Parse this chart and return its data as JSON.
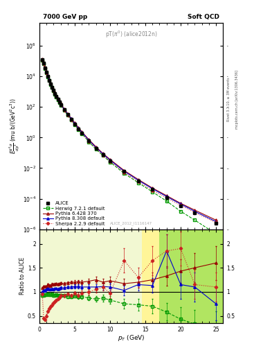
{
  "title_left": "7000 GeV pp",
  "title_right": "Soft QCD",
  "plot_label": "pT(π⁰) (alice2012n)",
  "watermark": "ALICE_2012_I1116147",
  "right_label1": "Rivet 3.1.10, ≥ 3M events",
  "right_label2": "mcplots.cern.ch [arXiv:1306.3436]",
  "ylim_main": [
    1e-06,
    30000000.0
  ],
  "ylim_ratio": [
    0.35,
    2.3
  ],
  "xlim": [
    0,
    26
  ],
  "alice_x": [
    0.4,
    0.6,
    0.8,
    1.0,
    1.2,
    1.4,
    1.6,
    1.8,
    2.0,
    2.2,
    2.4,
    2.6,
    2.8,
    3.0,
    3.5,
    4.0,
    4.5,
    5.0,
    5.5,
    6.0,
    7.0,
    8.0,
    9.0,
    10.0,
    12.0,
    14.0,
    16.0,
    18.0,
    20.0,
    22.0,
    25.0
  ],
  "alice_y": [
    120000.0,
    70000.0,
    35000.0,
    18000.0,
    10000.0,
    5500,
    3200,
    1900,
    1200,
    750,
    480,
    320,
    210,
    140,
    65,
    31,
    15,
    7.5,
    3.8,
    2.0,
    0.6,
    0.2,
    0.075,
    0.03,
    0.006,
    0.0015,
    0.0004,
    0.00012,
    3.5e-05,
    1.2e-05,
    2.5e-06
  ],
  "alice_yerr": [
    5000.0,
    400.0,
    200.0,
    1000.0,
    600.0,
    300,
    180,
    110,
    70,
    45,
    30,
    20,
    13,
    9,
    4,
    2,
    1,
    0.5,
    0.25,
    0.13,
    0.04,
    0.013,
    0.005,
    0.002,
    0.0004,
    0.0001,
    3e-05,
    9e-06,
    3e-06,
    1e-06,
    3e-07
  ],
  "herwig_x": [
    0.4,
    0.6,
    0.8,
    1.0,
    1.2,
    1.4,
    1.6,
    1.8,
    2.0,
    2.2,
    2.4,
    2.6,
    2.8,
    3.0,
    3.5,
    4.0,
    4.5,
    5.0,
    5.5,
    6.0,
    7.0,
    8.0,
    9.0,
    10.0,
    12.0,
    14.0,
    16.0,
    18.0,
    20.0,
    22.0,
    25.0
  ],
  "herwig_y": [
    110000.0,
    65000.0,
    33000.0,
    17000.0,
    9500,
    5200,
    3000,
    1800,
    1100,
    700,
    450,
    295,
    195,
    130,
    60,
    28,
    13.5,
    6.8,
    3.4,
    1.8,
    0.52,
    0.17,
    0.065,
    0.025,
    0.0045,
    0.0011,
    0.00028,
    7e-05,
    1.5e-05,
    4e-06,
    5e-07
  ],
  "pythia6_x": [
    0.4,
    0.6,
    0.8,
    1.0,
    1.2,
    1.4,
    1.6,
    1.8,
    2.0,
    2.2,
    2.4,
    2.6,
    2.8,
    3.0,
    3.5,
    4.0,
    4.5,
    5.0,
    5.5,
    6.0,
    7.0,
    8.0,
    9.0,
    10.0,
    12.0,
    14.0,
    16.0,
    18.0,
    20.0,
    22.0,
    25.0
  ],
  "pythia6_y": [
    130000.0,
    78000.0,
    39000.0,
    20000.0,
    11500.0,
    6200,
    3600,
    2200,
    1380,
    870,
    560,
    370,
    245,
    165,
    76,
    37,
    18,
    9.0,
    4.6,
    2.4,
    0.73,
    0.25,
    0.09,
    0.037,
    0.007,
    0.0018,
    0.0005,
    0.00016,
    5e-05,
    1.8e-05,
    4e-06
  ],
  "pythia8_x": [
    0.4,
    0.6,
    0.8,
    1.0,
    1.2,
    1.4,
    1.6,
    1.8,
    2.0,
    2.2,
    2.4,
    2.6,
    2.8,
    3.0,
    3.5,
    4.0,
    4.5,
    5.0,
    5.5,
    6.0,
    7.0,
    8.0,
    9.0,
    10.0,
    12.0,
    14.0,
    16.0,
    18.0,
    20.0,
    22.0,
    25.0
  ],
  "pythia8_y": [
    120000.0,
    72000.0,
    36000.0,
    19000.0,
    10700.0,
    5800,
    3350,
    2020,
    1260,
    800,
    515,
    340,
    225,
    152,
    70,
    34,
    16.5,
    8.3,
    4.2,
    2.2,
    0.66,
    0.22,
    0.083,
    0.033,
    0.0062,
    0.0016,
    0.00045,
    0.00014,
    4.5e-05,
    1.5e-05,
    3.2e-06
  ],
  "sherpa_x": [
    0.4,
    0.6,
    0.8,
    1.0,
    1.2,
    1.4,
    1.6,
    1.8,
    2.0,
    2.2,
    2.4,
    2.6,
    2.8,
    3.0,
    3.5,
    4.0,
    4.5,
    5.0,
    5.5,
    6.0,
    7.0,
    8.0,
    9.0,
    10.0,
    12.0,
    14.0,
    16.0,
    18.0,
    20.0,
    22.0,
    25.0
  ],
  "sherpa_y": [
    115000.0,
    68000.0,
    34000.0,
    17500.0,
    9800,
    5400,
    3100,
    1850,
    1150,
    730,
    465,
    308,
    202,
    136,
    62,
    30,
    14.5,
    7.2,
    3.65,
    1.9,
    0.57,
    0.19,
    0.072,
    0.028,
    0.0052,
    0.0013,
    0.00035,
    0.000115,
    3.7e-05,
    1.25e-05,
    2.8e-06
  ],
  "herwig_ratio_y": [
    0.92,
    0.93,
    0.94,
    0.94,
    0.95,
    0.945,
    0.94,
    0.95,
    0.92,
    0.93,
    0.94,
    0.92,
    0.93,
    0.93,
    0.92,
    0.9,
    0.9,
    0.91,
    0.89,
    0.9,
    0.87,
    0.85,
    0.87,
    0.83,
    0.75,
    0.73,
    0.7,
    0.58,
    0.43,
    0.33,
    0.2
  ],
  "herwig_ratio_yerr": [
    0.02,
    0.02,
    0.02,
    0.02,
    0.02,
    0.02,
    0.02,
    0.02,
    0.02,
    0.02,
    0.02,
    0.02,
    0.02,
    0.02,
    0.03,
    0.03,
    0.03,
    0.03,
    0.03,
    0.04,
    0.05,
    0.06,
    0.07,
    0.08,
    0.1,
    0.12,
    0.15,
    0.18,
    0.25,
    0.3,
    0.4
  ],
  "pythia6_ratio_y": [
    1.08,
    1.11,
    1.11,
    1.11,
    1.15,
    1.13,
    1.13,
    1.16,
    1.15,
    1.16,
    1.17,
    1.16,
    1.17,
    1.18,
    1.17,
    1.19,
    1.2,
    1.2,
    1.21,
    1.2,
    1.22,
    1.25,
    1.2,
    1.23,
    1.17,
    1.2,
    1.25,
    1.33,
    1.43,
    1.5,
    1.6
  ],
  "pythia6_ratio_yerr": [
    0.02,
    0.02,
    0.02,
    0.02,
    0.02,
    0.02,
    0.02,
    0.02,
    0.02,
    0.02,
    0.02,
    0.02,
    0.02,
    0.02,
    0.03,
    0.03,
    0.03,
    0.04,
    0.04,
    0.04,
    0.05,
    0.06,
    0.07,
    0.08,
    0.1,
    0.12,
    0.15,
    0.2,
    0.25,
    0.3,
    0.35
  ],
  "pythia8_ratio_y": [
    1.0,
    1.03,
    1.03,
    1.06,
    1.07,
    1.05,
    1.05,
    1.06,
    1.05,
    1.07,
    1.07,
    1.06,
    1.07,
    1.09,
    1.08,
    1.1,
    1.1,
    1.11,
    1.11,
    1.1,
    1.1,
    1.1,
    1.11,
    1.1,
    1.03,
    1.15,
    1.13,
    1.85,
    1.15,
    1.1,
    0.75
  ],
  "pythia8_ratio_yerr": [
    0.02,
    0.02,
    0.02,
    0.02,
    0.02,
    0.02,
    0.02,
    0.02,
    0.02,
    0.02,
    0.02,
    0.02,
    0.02,
    0.02,
    0.03,
    0.03,
    0.03,
    0.04,
    0.04,
    0.04,
    0.05,
    0.06,
    0.07,
    0.08,
    0.1,
    0.12,
    0.15,
    0.35,
    0.3,
    0.3,
    0.35
  ],
  "sherpa_ratio_y": [
    0.96,
    0.45,
    0.42,
    0.5,
    0.6,
    0.65,
    0.7,
    0.73,
    0.77,
    0.8,
    0.83,
    0.86,
    0.88,
    0.92,
    0.92,
    0.95,
    0.92,
    0.97,
    0.93,
    0.97,
    1.0,
    1.05,
    1.1,
    0.97,
    1.65,
    1.3,
    1.65,
    1.85,
    1.9,
    1.15,
    1.1
  ],
  "sherpa_ratio_yerr": [
    0.02,
    0.03,
    0.03,
    0.03,
    0.03,
    0.03,
    0.03,
    0.03,
    0.03,
    0.03,
    0.03,
    0.03,
    0.03,
    0.03,
    0.04,
    0.04,
    0.04,
    0.04,
    0.05,
    0.05,
    0.06,
    0.07,
    0.08,
    0.1,
    0.25,
    0.2,
    0.3,
    0.35,
    0.35,
    0.3,
    0.3
  ],
  "band_yellow_start": 14.5,
  "band_green_start": 17.0,
  "band_end": 26.0,
  "yellow_color": "#ffee44",
  "green_color": "#88dd44"
}
